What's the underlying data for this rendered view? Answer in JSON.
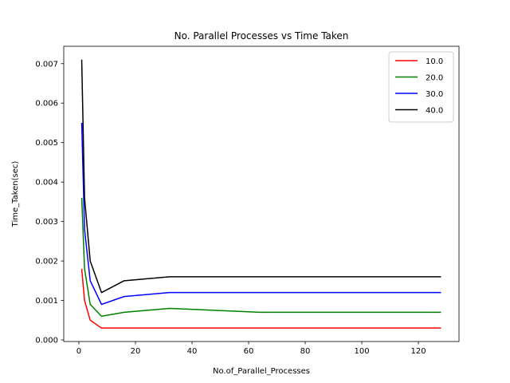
{
  "chart_data": {
    "type": "line",
    "title": "No. Parallel Processes vs Time Taken",
    "xlabel": "No.of_Parallel_Processes",
    "ylabel": "Time_Taken(sec)",
    "xlim": [
      -5.35,
      134.35
    ],
    "ylim": [
      -4e-05,
      0.00744
    ],
    "xticks": [
      0,
      20,
      40,
      60,
      80,
      100,
      120
    ],
    "xtick_labels": [
      "0",
      "20",
      "40",
      "60",
      "80",
      "100",
      "120"
    ],
    "yticks": [
      0.0,
      0.001,
      0.002,
      0.003,
      0.004,
      0.005,
      0.006,
      0.007
    ],
    "ytick_labels": [
      "0.000",
      "0.001",
      "0.002",
      "0.003",
      "0.004",
      "0.005",
      "0.006",
      "0.007"
    ],
    "grid": false,
    "legend_position": "top-right",
    "x": [
      1,
      2,
      4,
      8,
      16,
      32,
      64,
      128
    ],
    "series": [
      {
        "name": "10.0",
        "color": "#ff0000",
        "values": [
          0.0018,
          0.001,
          0.0005,
          0.0003,
          0.0003,
          0.0003,
          0.0003,
          0.0003
        ]
      },
      {
        "name": "20.0",
        "color": "#008000",
        "values": [
          0.0036,
          0.0018,
          0.0009,
          0.0006,
          0.0007,
          0.0008,
          0.0007,
          0.0007
        ]
      },
      {
        "name": "30.0",
        "color": "#0000ff",
        "values": [
          0.0055,
          0.0028,
          0.0015,
          0.0009,
          0.0011,
          0.0012,
          0.0012,
          0.0012
        ]
      },
      {
        "name": "40.0",
        "color": "#000000",
        "values": [
          0.0071,
          0.0036,
          0.002,
          0.0012,
          0.0015,
          0.0016,
          0.0016,
          0.0016
        ]
      }
    ]
  }
}
